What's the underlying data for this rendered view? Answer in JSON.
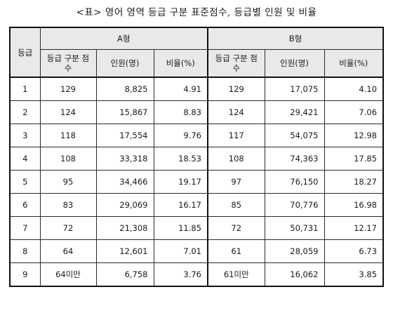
{
  "title": "<표> 영어 영역 등급 구분 표준점수, 등급별 인원 및 비율",
  "header": {
    "grade": "등급",
    "type_a": "A형",
    "type_b": "B형",
    "sub": {
      "score": "등급 구분 점수",
      "count": "인원(명)",
      "ratio": "비율(%)"
    }
  },
  "rows": [
    {
      "grade": "1",
      "a_score": "129",
      "a_count": "8,825",
      "a_ratio": "4.91",
      "b_score": "129",
      "b_count": "17,075",
      "b_ratio": "4.10"
    },
    {
      "grade": "2",
      "a_score": "124",
      "a_count": "15,867",
      "a_ratio": "8.83",
      "b_score": "124",
      "b_count": "29,421",
      "b_ratio": "7.06"
    },
    {
      "grade": "3",
      "a_score": "118",
      "a_count": "17,554",
      "a_ratio": "9.76",
      "b_score": "117",
      "b_count": "54,075",
      "b_ratio": "12.98"
    },
    {
      "grade": "4",
      "a_score": "108",
      "a_count": "33,318",
      "a_ratio": "18.53",
      "b_score": "108",
      "b_count": "74,363",
      "b_ratio": "17.85"
    },
    {
      "grade": "5",
      "a_score": "95",
      "a_count": "34,466",
      "a_ratio": "19.17",
      "b_score": "97",
      "b_count": "76,150",
      "b_ratio": "18.27"
    },
    {
      "grade": "6",
      "a_score": "83",
      "a_count": "29,069",
      "a_ratio": "16.17",
      "b_score": "85",
      "b_count": "70,776",
      "b_ratio": "16.98"
    },
    {
      "grade": "7",
      "a_score": "72",
      "a_count": "21,308",
      "a_ratio": "11.85",
      "b_score": "72",
      "b_count": "50,731",
      "b_ratio": "12.17"
    },
    {
      "grade": "8",
      "a_score": "64",
      "a_count": "12,601",
      "a_ratio": "7.01",
      "b_score": "61",
      "b_count": "28,059",
      "b_ratio": "6.73"
    },
    {
      "grade": "9",
      "a_score": "64미만",
      "a_count": "6,758",
      "a_ratio": "3.76",
      "b_score": "61미만",
      "b_count": "16,062",
      "b_ratio": "3.85"
    }
  ]
}
